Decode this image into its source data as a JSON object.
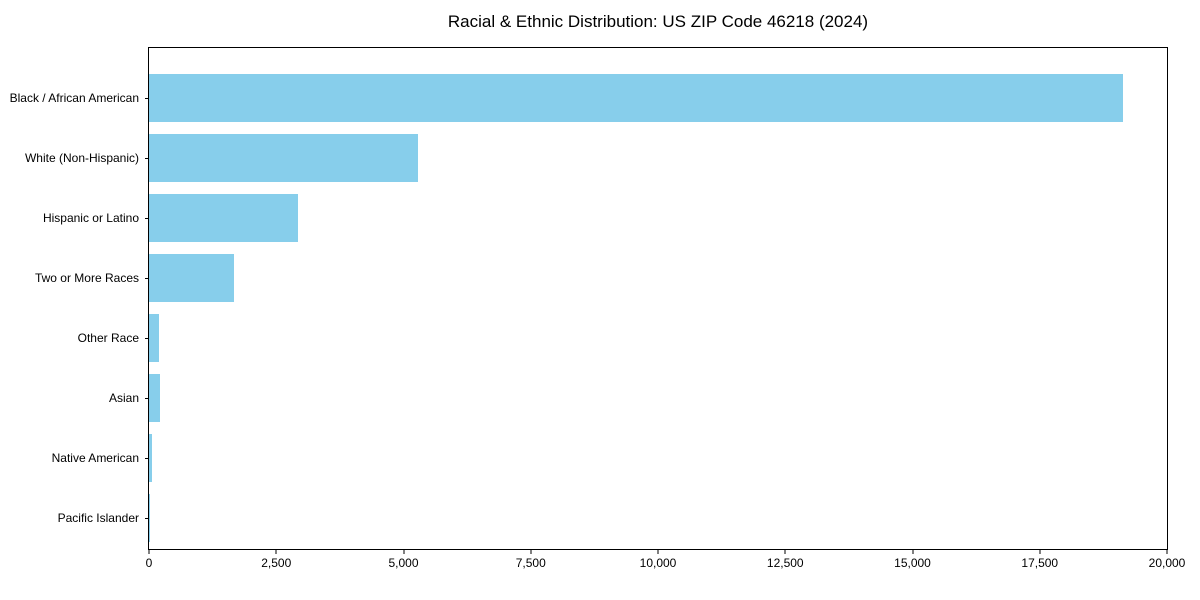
{
  "chart_data": {
    "type": "bar",
    "orientation": "horizontal",
    "title": "Racial & Ethnic Distribution: US ZIP Code 46218 (2024)",
    "categories": [
      "Black / African American",
      "White (Non-Hispanic)",
      "Hispanic or Latino",
      "Two or More Races",
      "Other Race",
      "Asian",
      "Native American",
      "Pacific Islander"
    ],
    "values": [
      19130,
      5290,
      2920,
      1670,
      190,
      210,
      55,
      10
    ],
    "xlabel": "",
    "ylabel": "",
    "xlim": [
      0,
      20000
    ],
    "x_tick_values": [
      0,
      2500,
      5000,
      7500,
      10000,
      12500,
      15000,
      17500,
      20000
    ],
    "x_tick_labels": [
      "0",
      "2,500",
      "5,000",
      "7,500",
      "10,000",
      "12,500",
      "15,000",
      "17,500",
      "20,000"
    ],
    "bar_color": "#87CEEB",
    "frame_color": "#000000",
    "background_color": "#ffffff",
    "grid": false,
    "legend": "none"
  }
}
